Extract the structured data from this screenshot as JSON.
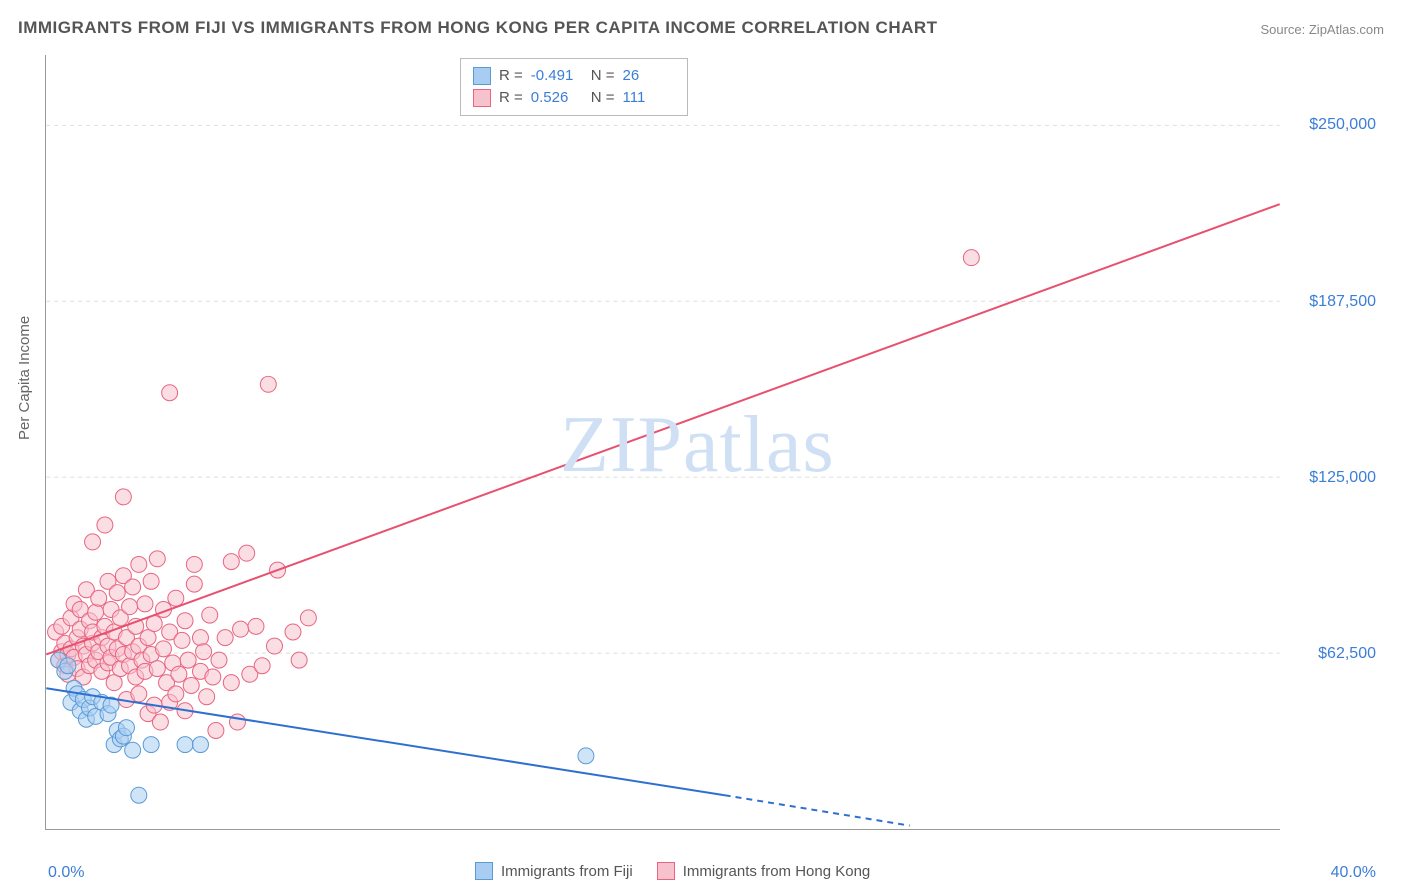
{
  "title": "IMMIGRANTS FROM FIJI VS IMMIGRANTS FROM HONG KONG PER CAPITA INCOME CORRELATION CHART",
  "source_label": "Source: ",
  "source_value": "ZipAtlas.com",
  "y_axis_title": "Per Capita Income",
  "watermark_zip": "ZIP",
  "watermark_atlas": "atlas",
  "chart": {
    "type": "scatter-with-regression",
    "xlim": [
      0,
      40
    ],
    "ylim": [
      0,
      275000
    ],
    "x_ticks": [
      {
        "value": 0,
        "label": "0.0%"
      },
      {
        "value": 40,
        "label": "40.0%"
      }
    ],
    "y_ticks": [
      {
        "value": 62500,
        "label": "$62,500"
      },
      {
        "value": 125000,
        "label": "$125,000"
      },
      {
        "value": 187500,
        "label": "$187,500"
      },
      {
        "value": 250000,
        "label": "$250,000"
      }
    ],
    "grid_color": "#dddddd",
    "grid_dash": "4,4",
    "background_color": "#ffffff",
    "axis_color": "#999999",
    "marker_radius": 8,
    "marker_opacity": 0.55,
    "line_width": 2,
    "series": [
      {
        "name": "Immigrants from Fiji",
        "color_fill": "#a9cdf2",
        "color_stroke": "#5b9bd5",
        "line_color": "#2e6fd0",
        "R": "-0.491",
        "N": "26",
        "regression": {
          "x1": 0,
          "y1": 50000,
          "x2": 22,
          "y2": 12000,
          "dash_x2": 28,
          "dash_y2": 1200
        },
        "points": [
          [
            0.4,
            60000
          ],
          [
            0.6,
            56000
          ],
          [
            0.7,
            58000
          ],
          [
            0.8,
            45000
          ],
          [
            0.9,
            50000
          ],
          [
            1.0,
            48000
          ],
          [
            1.1,
            42000
          ],
          [
            1.2,
            46000
          ],
          [
            1.3,
            39000
          ],
          [
            1.4,
            43000
          ],
          [
            1.5,
            47000
          ],
          [
            1.6,
            40000
          ],
          [
            1.8,
            45000
          ],
          [
            2.0,
            41000
          ],
          [
            2.1,
            44000
          ],
          [
            2.2,
            30000
          ],
          [
            2.3,
            35000
          ],
          [
            2.4,
            32000
          ],
          [
            2.5,
            33000
          ],
          [
            2.6,
            36000
          ],
          [
            2.8,
            28000
          ],
          [
            3.0,
            12000
          ],
          [
            3.4,
            30000
          ],
          [
            4.5,
            30000
          ],
          [
            5.0,
            30000
          ],
          [
            17.5,
            26000
          ]
        ]
      },
      {
        "name": "Immigrants from Hong Kong",
        "color_fill": "#f7c1ce",
        "color_stroke": "#e8657f",
        "line_color": "#e8506f",
        "R": "0.526",
        "N": "111",
        "regression": {
          "x1": 0,
          "y1": 62000,
          "x2": 40,
          "y2": 222000
        },
        "points": [
          [
            0.3,
            70000
          ],
          [
            0.4,
            60000
          ],
          [
            0.5,
            63000
          ],
          [
            0.5,
            72000
          ],
          [
            0.6,
            58000
          ],
          [
            0.6,
            66000
          ],
          [
            0.7,
            62000
          ],
          [
            0.7,
            55000
          ],
          [
            0.8,
            75000
          ],
          [
            0.8,
            64000
          ],
          [
            0.9,
            61000
          ],
          [
            0.9,
            80000
          ],
          [
            1.0,
            57000
          ],
          [
            1.0,
            68000
          ],
          [
            1.1,
            71000
          ],
          [
            1.1,
            78000
          ],
          [
            1.2,
            54000
          ],
          [
            1.2,
            65000
          ],
          [
            1.3,
            62000
          ],
          [
            1.3,
            85000
          ],
          [
            1.4,
            58000
          ],
          [
            1.4,
            74000
          ],
          [
            1.5,
            66000
          ],
          [
            1.5,
            70000
          ],
          [
            1.5,
            102000
          ],
          [
            1.6,
            60000
          ],
          [
            1.6,
            77000
          ],
          [
            1.7,
            63000
          ],
          [
            1.7,
            82000
          ],
          [
            1.8,
            56000
          ],
          [
            1.8,
            68000
          ],
          [
            1.9,
            72000
          ],
          [
            1.9,
            108000
          ],
          [
            2.0,
            59000
          ],
          [
            2.0,
            65000
          ],
          [
            2.0,
            88000
          ],
          [
            2.1,
            61000
          ],
          [
            2.1,
            78000
          ],
          [
            2.2,
            52000
          ],
          [
            2.2,
            70000
          ],
          [
            2.3,
            64000
          ],
          [
            2.3,
            84000
          ],
          [
            2.4,
            57000
          ],
          [
            2.4,
            75000
          ],
          [
            2.5,
            62000
          ],
          [
            2.5,
            90000
          ],
          [
            2.5,
            118000
          ],
          [
            2.6,
            46000
          ],
          [
            2.6,
            68000
          ],
          [
            2.7,
            58000
          ],
          [
            2.7,
            79000
          ],
          [
            2.8,
            63000
          ],
          [
            2.8,
            86000
          ],
          [
            2.9,
            54000
          ],
          [
            2.9,
            72000
          ],
          [
            3.0,
            48000
          ],
          [
            3.0,
            65000
          ],
          [
            3.0,
            94000
          ],
          [
            3.1,
            60000
          ],
          [
            3.2,
            56000
          ],
          [
            3.2,
            80000
          ],
          [
            3.3,
            41000
          ],
          [
            3.3,
            68000
          ],
          [
            3.4,
            62000
          ],
          [
            3.4,
            88000
          ],
          [
            3.5,
            44000
          ],
          [
            3.5,
            73000
          ],
          [
            3.6,
            57000
          ],
          [
            3.6,
            96000
          ],
          [
            3.7,
            38000
          ],
          [
            3.8,
            64000
          ],
          [
            3.8,
            78000
          ],
          [
            3.9,
            52000
          ],
          [
            4.0,
            45000
          ],
          [
            4.0,
            70000
          ],
          [
            4.0,
            155000
          ],
          [
            4.1,
            59000
          ],
          [
            4.2,
            48000
          ],
          [
            4.2,
            82000
          ],
          [
            4.3,
            55000
          ],
          [
            4.4,
            67000
          ],
          [
            4.5,
            42000
          ],
          [
            4.5,
            74000
          ],
          [
            4.6,
            60000
          ],
          [
            4.7,
            51000
          ],
          [
            4.8,
            87000
          ],
          [
            4.8,
            94000
          ],
          [
            5.0,
            56000
          ],
          [
            5.0,
            68000
          ],
          [
            5.1,
            63000
          ],
          [
            5.2,
            47000
          ],
          [
            5.3,
            76000
          ],
          [
            5.4,
            54000
          ],
          [
            5.5,
            35000
          ],
          [
            5.6,
            60000
          ],
          [
            5.8,
            68000
          ],
          [
            6.0,
            52000
          ],
          [
            6.0,
            95000
          ],
          [
            6.2,
            38000
          ],
          [
            6.3,
            71000
          ],
          [
            6.5,
            98000
          ],
          [
            6.6,
            55000
          ],
          [
            6.8,
            72000
          ],
          [
            7.0,
            58000
          ],
          [
            7.2,
            158000
          ],
          [
            7.4,
            65000
          ],
          [
            7.5,
            92000
          ],
          [
            8.0,
            70000
          ],
          [
            8.2,
            60000
          ],
          [
            8.5,
            75000
          ],
          [
            30.0,
            203000
          ]
        ]
      }
    ]
  },
  "legend_top_rows": [
    {
      "swatch_fill": "#a9cdf2",
      "swatch_stroke": "#5b9bd5",
      "r_label": "R =",
      "r_val": "-0.491",
      "n_label": "N =",
      "n_val": "26"
    },
    {
      "swatch_fill": "#f7c1ce",
      "swatch_stroke": "#e8657f",
      "r_label": "R =",
      "r_val": "0.526",
      "n_label": "N =",
      "n_val": "111"
    }
  ],
  "legend_bottom": [
    {
      "swatch_fill": "#a9cdf2",
      "swatch_stroke": "#5b9bd5",
      "label": "Immigrants from Fiji"
    },
    {
      "swatch_fill": "#f7c1ce",
      "swatch_stroke": "#e8657f",
      "label": "Immigrants from Hong Kong"
    }
  ]
}
